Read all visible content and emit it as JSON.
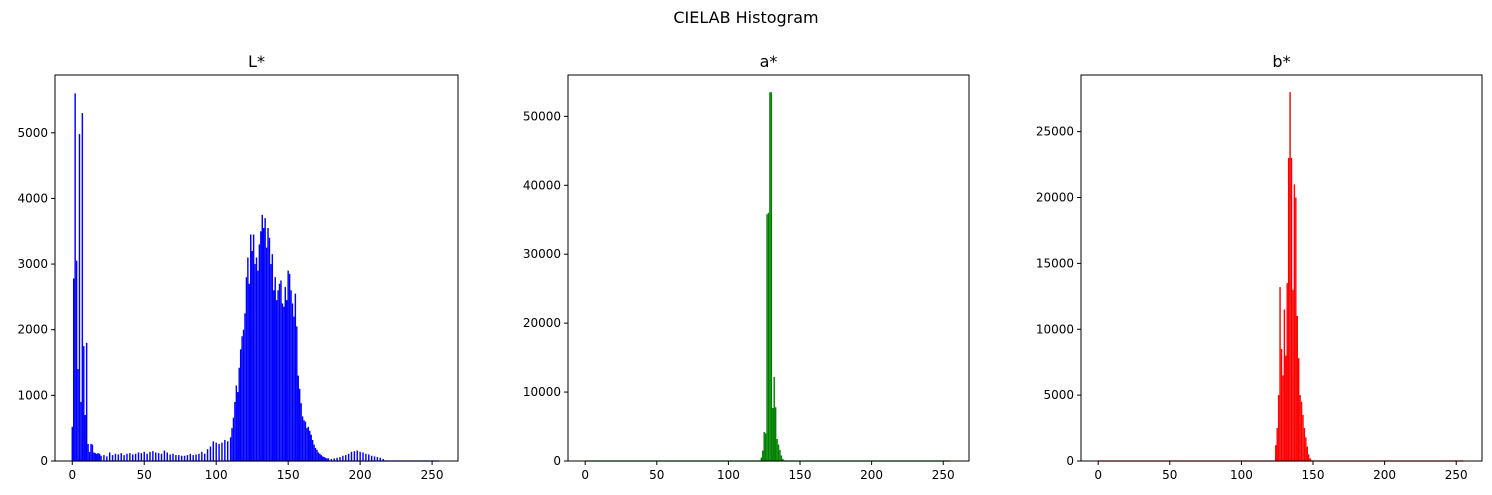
{
  "title": "CIELAB Histogram",
  "chart_data": [
    {
      "type": "bar",
      "title": "L*",
      "color": "#0000ff",
      "xlim": [
        -12,
        268
      ],
      "ylim": [
        0,
        5880
      ],
      "xticks": [
        0,
        50,
        100,
        150,
        200,
        250
      ],
      "yticks": [
        0,
        1000,
        2000,
        3000,
        4000,
        5000
      ],
      "points": [
        [
          0,
          520
        ],
        [
          1,
          2780
        ],
        [
          2,
          5600
        ],
        [
          3,
          3050
        ],
        [
          4,
          1400
        ],
        [
          5,
          4980
        ],
        [
          6,
          900
        ],
        [
          7,
          5300
        ],
        [
          8,
          1750
        ],
        [
          9,
          700
        ],
        [
          10,
          1800
        ],
        [
          11,
          260
        ],
        [
          12,
          140
        ],
        [
          13,
          260
        ],
        [
          14,
          250
        ],
        [
          15,
          130
        ],
        [
          16,
          120
        ],
        [
          17,
          110
        ],
        [
          18,
          120
        ],
        [
          19,
          110
        ],
        [
          20,
          80
        ],
        [
          22,
          90
        ],
        [
          24,
          70
        ],
        [
          26,
          130
        ],
        [
          28,
          90
        ],
        [
          30,
          110
        ],
        [
          32,
          100
        ],
        [
          34,
          120
        ],
        [
          36,
          90
        ],
        [
          38,
          110
        ],
        [
          40,
          120
        ],
        [
          42,
          100
        ],
        [
          44,
          110
        ],
        [
          46,
          130
        ],
        [
          48,
          120
        ],
        [
          50,
          140
        ],
        [
          52,
          110
        ],
        [
          54,
          140
        ],
        [
          56,
          150
        ],
        [
          58,
          130
        ],
        [
          60,
          120
        ],
        [
          62,
          110
        ],
        [
          64,
          160
        ],
        [
          66,
          130
        ],
        [
          68,
          100
        ],
        [
          70,
          110
        ],
        [
          72,
          90
        ],
        [
          74,
          90
        ],
        [
          76,
          80
        ],
        [
          78,
          80
        ],
        [
          80,
          90
        ],
        [
          82,
          110
        ],
        [
          84,
          90
        ],
        [
          86,
          100
        ],
        [
          88,
          110
        ],
        [
          90,
          140
        ],
        [
          92,
          110
        ],
        [
          94,
          180
        ],
        [
          96,
          220
        ],
        [
          98,
          300
        ],
        [
          100,
          280
        ],
        [
          102,
          260
        ],
        [
          104,
          280
        ],
        [
          106,
          320
        ],
        [
          108,
          300
        ],
        [
          110,
          360
        ],
        [
          111,
          500
        ],
        [
          112,
          660
        ],
        [
          113,
          900
        ],
        [
          114,
          1150
        ],
        [
          115,
          1050
        ],
        [
          116,
          1420
        ],
        [
          117,
          1700
        ],
        [
          118,
          1900
        ],
        [
          119,
          2000
        ],
        [
          120,
          2250
        ],
        [
          121,
          2800
        ],
        [
          122,
          3100
        ],
        [
          123,
          2700
        ],
        [
          124,
          3450
        ],
        [
          125,
          3200
        ],
        [
          126,
          3450
        ],
        [
          127,
          3000
        ],
        [
          128,
          3100
        ],
        [
          129,
          2900
        ],
        [
          130,
          3300
        ],
        [
          131,
          3500
        ],
        [
          132,
          3750
        ],
        [
          133,
          3550
        ],
        [
          134,
          3700
        ],
        [
          135,
          3250
        ],
        [
          136,
          3550
        ],
        [
          137,
          3400
        ],
        [
          138,
          3000
        ],
        [
          139,
          3150
        ],
        [
          140,
          2600
        ],
        [
          141,
          2800
        ],
        [
          142,
          2450
        ],
        [
          143,
          2600
        ],
        [
          144,
          2700
        ],
        [
          145,
          2750
        ],
        [
          146,
          2400
        ],
        [
          147,
          2350
        ],
        [
          148,
          2650
        ],
        [
          149,
          2450
        ],
        [
          150,
          2900
        ],
        [
          151,
          2850
        ],
        [
          152,
          2600
        ],
        [
          153,
          2400
        ],
        [
          154,
          2200
        ],
        [
          155,
          2550
        ],
        [
          156,
          2050
        ],
        [
          157,
          1300
        ],
        [
          158,
          1100
        ],
        [
          159,
          880
        ],
        [
          160,
          680
        ],
        [
          161,
          620
        ],
        [
          162,
          600
        ],
        [
          163,
          500
        ],
        [
          164,
          520
        ],
        [
          165,
          460
        ],
        [
          166,
          400
        ],
        [
          167,
          320
        ],
        [
          168,
          250
        ],
        [
          169,
          200
        ],
        [
          170,
          170
        ],
        [
          171,
          130
        ],
        [
          172,
          110
        ],
        [
          173,
          90
        ],
        [
          174,
          70
        ],
        [
          175,
          60
        ],
        [
          176,
          50
        ],
        [
          177,
          40
        ],
        [
          178,
          40
        ],
        [
          180,
          30
        ],
        [
          182,
          40
        ],
        [
          184,
          50
        ],
        [
          186,
          60
        ],
        [
          188,
          80
        ],
        [
          190,
          90
        ],
        [
          192,
          110
        ],
        [
          194,
          140
        ],
        [
          196,
          150
        ],
        [
          198,
          160
        ],
        [
          200,
          140
        ],
        [
          202,
          130
        ],
        [
          204,
          110
        ],
        [
          206,
          100
        ],
        [
          208,
          80
        ],
        [
          210,
          70
        ],
        [
          212,
          60
        ],
        [
          214,
          50
        ],
        [
          216,
          30
        ],
        [
          218,
          10
        ],
        [
          220,
          0
        ],
        [
          255,
          0
        ]
      ]
    },
    {
      "type": "bar",
      "title": "a*",
      "color": "#008000",
      "xlim": [
        -12,
        268
      ],
      "ylim": [
        0,
        56000
      ],
      "xticks": [
        0,
        50,
        100,
        150,
        200,
        250
      ],
      "yticks": [
        0,
        10000,
        20000,
        30000,
        40000,
        50000
      ],
      "points": [
        [
          0,
          0
        ],
        [
          120,
          0
        ],
        [
          123,
          500
        ],
        [
          124,
          1500
        ],
        [
          125,
          4200
        ],
        [
          126,
          4000
        ],
        [
          127,
          35800
        ],
        [
          128,
          36000
        ],
        [
          129,
          53500
        ],
        [
          130,
          53500
        ],
        [
          131,
          7700
        ],
        [
          132,
          12200
        ],
        [
          133,
          7800
        ],
        [
          134,
          3200
        ],
        [
          135,
          2400
        ],
        [
          136,
          1600
        ],
        [
          137,
          800
        ],
        [
          138,
          300
        ],
        [
          139,
          100
        ],
        [
          140,
          30
        ],
        [
          141,
          0
        ],
        [
          255,
          0
        ]
      ]
    },
    {
      "type": "bar",
      "title": "b*",
      "color": "#ff0000",
      "xlim": [
        -12,
        268
      ],
      "ylim": [
        0,
        29300
      ],
      "xticks": [
        0,
        50,
        100,
        150,
        200,
        250
      ],
      "yticks": [
        0,
        5000,
        10000,
        15000,
        20000,
        25000
      ],
      "points": [
        [
          0,
          0
        ],
        [
          122,
          0
        ],
        [
          124,
          1200
        ],
        [
          125,
          2500
        ],
        [
          126,
          5000
        ],
        [
          127,
          13200
        ],
        [
          128,
          8500
        ],
        [
          129,
          6500
        ],
        [
          130,
          11500
        ],
        [
          131,
          8000
        ],
        [
          132,
          13500
        ],
        [
          133,
          23000
        ],
        [
          134,
          28000
        ],
        [
          135,
          23000
        ],
        [
          136,
          13000
        ],
        [
          137,
          21000
        ],
        [
          138,
          20000
        ],
        [
          139,
          11000
        ],
        [
          140,
          7800
        ],
        [
          141,
          5000
        ],
        [
          142,
          4500
        ],
        [
          143,
          3500
        ],
        [
          144,
          2500
        ],
        [
          145,
          1800
        ],
        [
          146,
          1100
        ],
        [
          147,
          500
        ],
        [
          148,
          200
        ],
        [
          149,
          50
        ],
        [
          150,
          0
        ],
        [
          255,
          0
        ]
      ]
    }
  ]
}
